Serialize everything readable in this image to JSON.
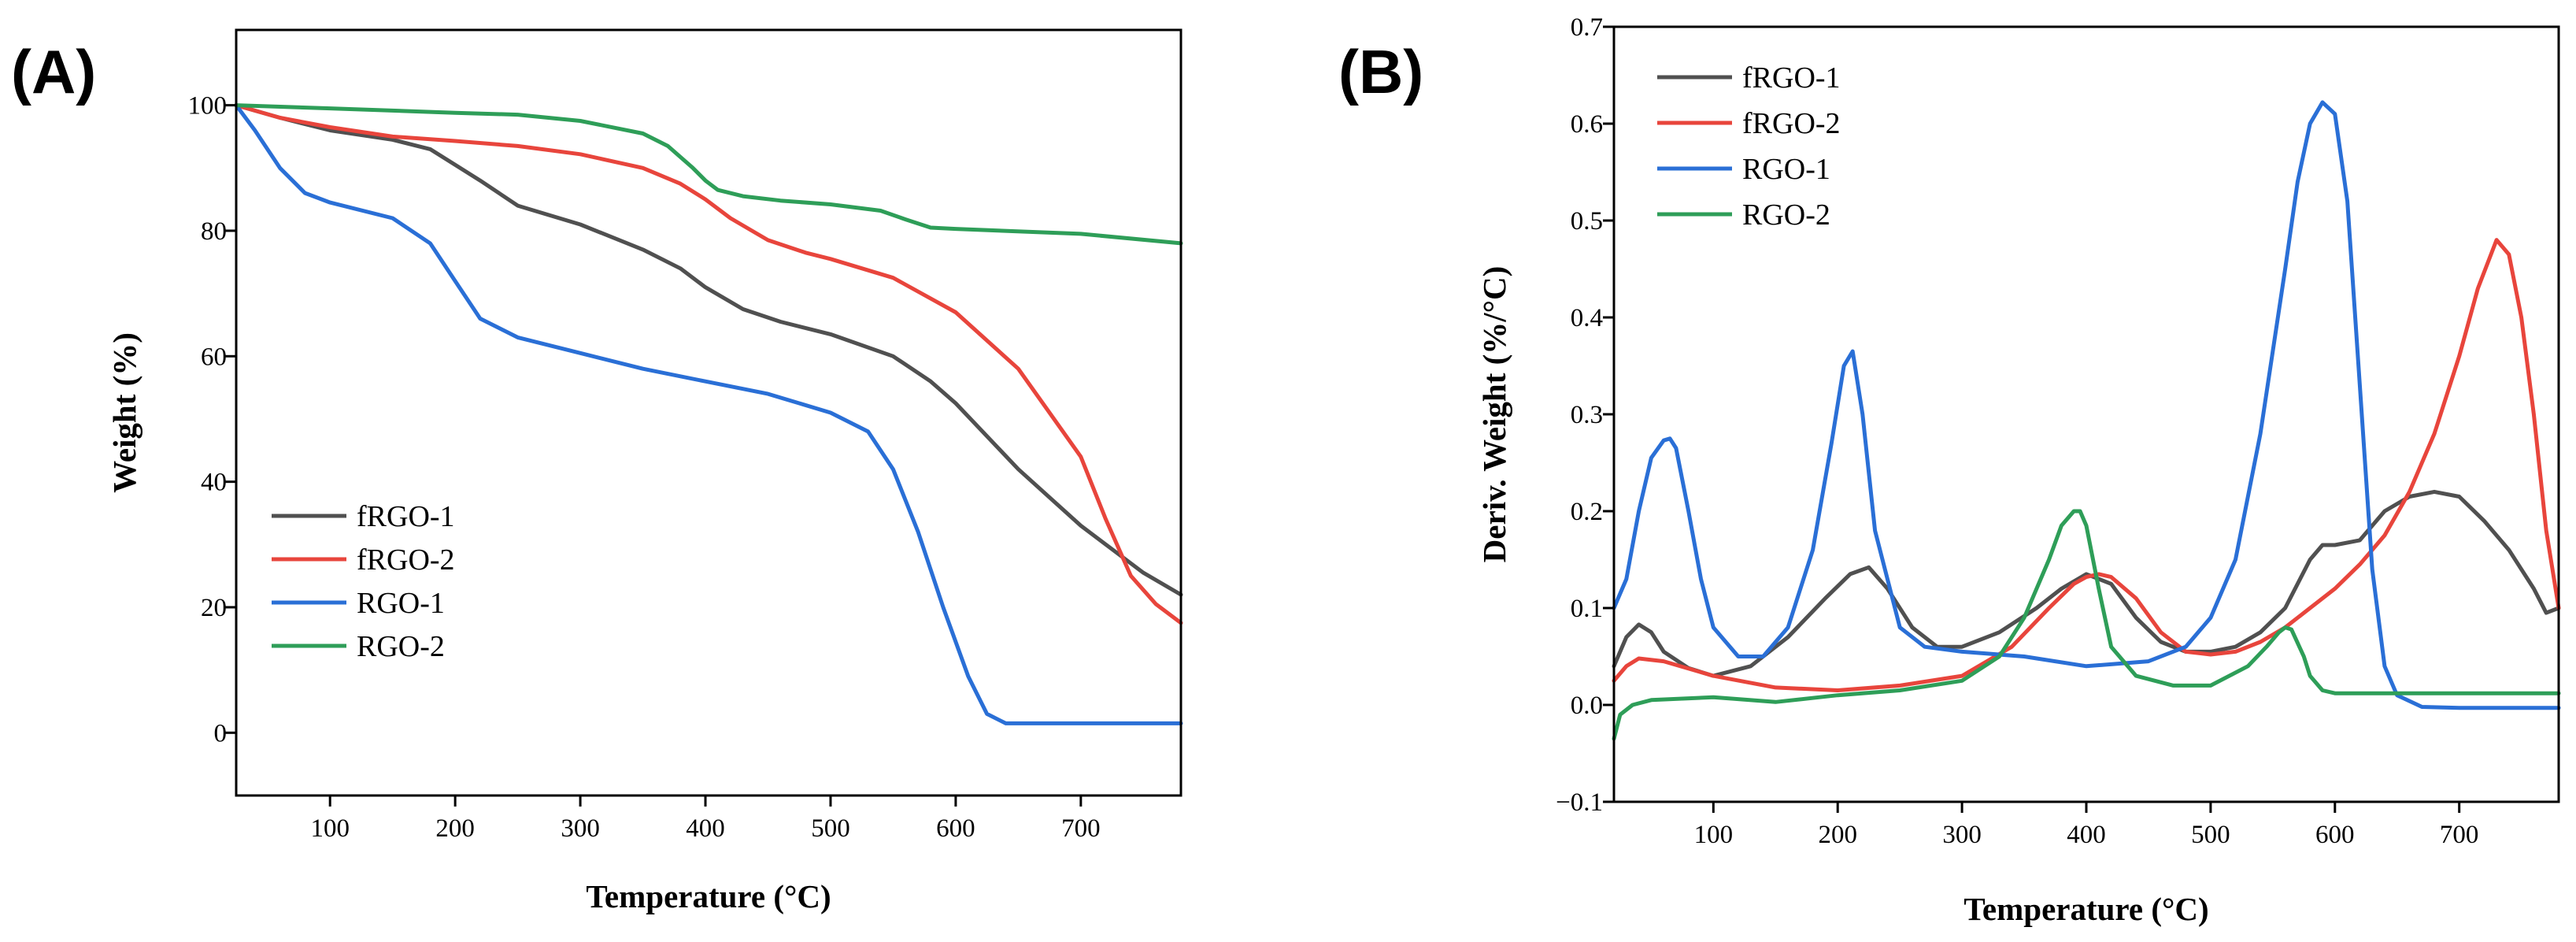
{
  "chart_data": [
    {
      "type": "line",
      "panel_label": "(A)",
      "title": "",
      "xlabel": "Temperature (°C)",
      "ylabel": "Weight (%)",
      "xlim": [
        25,
        780
      ],
      "ylim": [
        -10,
        112
      ],
      "xticks": [
        100,
        200,
        300,
        400,
        500,
        600,
        700
      ],
      "yticks": [
        0,
        20,
        40,
        60,
        80,
        100
      ],
      "legend_position": "bottom-left",
      "series": [
        {
          "name": "fRGO-1",
          "color": "#505050",
          "x": [
            25,
            60,
            100,
            150,
            180,
            200,
            220,
            250,
            300,
            350,
            380,
            400,
            430,
            460,
            500,
            550,
            580,
            600,
            650,
            700,
            750,
            780
          ],
          "y": [
            100,
            98,
            96,
            94.5,
            93,
            90.5,
            88,
            84,
            81,
            77,
            74,
            71,
            67.5,
            65.5,
            63.5,
            60,
            56,
            52.5,
            42,
            33,
            25.5,
            22
          ]
        },
        {
          "name": "fRGO-2",
          "color": "#e8453c",
          "x": [
            25,
            60,
            100,
            150,
            200,
            250,
            300,
            350,
            380,
            400,
            420,
            450,
            480,
            500,
            550,
            600,
            650,
            700,
            720,
            740,
            760,
            780
          ],
          "y": [
            100,
            98,
            96.5,
            95,
            94.3,
            93.5,
            92.2,
            90,
            87.5,
            85,
            82,
            78.5,
            76.5,
            75.5,
            72.5,
            67,
            58,
            44,
            34,
            25,
            20.5,
            17.5
          ]
        },
        {
          "name": "RGO-1",
          "color": "#2a6fd6",
          "x": [
            25,
            40,
            60,
            80,
            100,
            150,
            180,
            200,
            220,
            250,
            300,
            350,
            400,
            450,
            500,
            530,
            550,
            570,
            590,
            610,
            625,
            640,
            660,
            700,
            780
          ],
          "y": [
            100,
            96,
            90,
            86,
            84.5,
            82,
            78,
            72,
            66,
            63,
            60.5,
            58,
            56,
            54,
            51,
            48,
            42,
            32,
            20,
            9,
            3,
            1.5,
            1.5,
            1.5,
            1.5
          ]
        },
        {
          "name": "RGO-2",
          "color": "#2e9e58",
          "x": [
            25,
            100,
            200,
            250,
            300,
            350,
            370,
            390,
            400,
            410,
            430,
            460,
            500,
            540,
            560,
            580,
            600,
            700,
            780
          ],
          "y": [
            100,
            99.5,
            98.8,
            98.5,
            97.5,
            95.5,
            93.5,
            90,
            88,
            86.5,
            85.5,
            84.8,
            84.2,
            83.2,
            81.8,
            80.5,
            80.3,
            79.5,
            78
          ]
        }
      ]
    },
    {
      "type": "line",
      "panel_label": "(B)",
      "title": "",
      "xlabel": "Temperature (°C)",
      "ylabel": "Deriv. Weight (%/°C)",
      "xlim": [
        20,
        780
      ],
      "ylim": [
        -0.1,
        0.7
      ],
      "xticks": [
        100,
        200,
        300,
        400,
        500,
        600,
        700
      ],
      "yticks": [
        -0.1,
        0.0,
        0.1,
        0.2,
        0.3,
        0.4,
        0.5,
        0.6,
        0.7
      ],
      "ytick_labels": [
        "−0.1",
        "0.0",
        "0.1",
        "0.2",
        "0.3",
        "0.4",
        "0.5",
        "0.6",
        "0.7"
      ],
      "legend_position": "top-left",
      "series": [
        {
          "name": "fRGO-1",
          "color": "#505050",
          "x": [
            20,
            30,
            40,
            50,
            60,
            80,
            100,
            130,
            160,
            190,
            210,
            225,
            240,
            260,
            280,
            300,
            330,
            360,
            380,
            400,
            420,
            440,
            460,
            480,
            500,
            520,
            540,
            560,
            580,
            590,
            600,
            620,
            640,
            660,
            680,
            700,
            720,
            740,
            760,
            770,
            780
          ],
          "y": [
            0.04,
            0.07,
            0.083,
            0.075,
            0.055,
            0.038,
            0.03,
            0.04,
            0.07,
            0.11,
            0.135,
            0.142,
            0.12,
            0.08,
            0.06,
            0.06,
            0.075,
            0.1,
            0.12,
            0.135,
            0.125,
            0.09,
            0.065,
            0.055,
            0.055,
            0.06,
            0.075,
            0.1,
            0.15,
            0.165,
            0.165,
            0.17,
            0.2,
            0.215,
            0.22,
            0.215,
            0.19,
            0.16,
            0.12,
            0.095,
            0.1
          ]
        },
        {
          "name": "fRGO-2",
          "color": "#e8453c",
          "x": [
            20,
            30,
            40,
            60,
            100,
            150,
            200,
            250,
            300,
            340,
            370,
            390,
            400,
            410,
            420,
            440,
            460,
            480,
            500,
            520,
            540,
            560,
            580,
            600,
            620,
            640,
            660,
            680,
            700,
            715,
            730,
            740,
            750,
            760,
            770,
            780
          ],
          "y": [
            0.025,
            0.04,
            0.048,
            0.045,
            0.03,
            0.018,
            0.015,
            0.02,
            0.03,
            0.06,
            0.1,
            0.125,
            0.132,
            0.135,
            0.132,
            0.11,
            0.075,
            0.055,
            0.052,
            0.055,
            0.065,
            0.08,
            0.1,
            0.12,
            0.145,
            0.175,
            0.22,
            0.28,
            0.36,
            0.43,
            0.48,
            0.465,
            0.4,
            0.3,
            0.18,
            0.1
          ]
        },
        {
          "name": "RGO-1",
          "color": "#2a6fd6",
          "x": [
            20,
            30,
            40,
            50,
            60,
            65,
            70,
            80,
            90,
            100,
            120,
            140,
            160,
            180,
            195,
            205,
            212,
            220,
            230,
            250,
            270,
            300,
            350,
            400,
            450,
            480,
            500,
            520,
            540,
            560,
            570,
            580,
            590,
            600,
            610,
            620,
            630,
            640,
            650,
            670,
            700,
            780
          ],
          "y": [
            0.1,
            0.13,
            0.2,
            0.255,
            0.273,
            0.275,
            0.265,
            0.2,
            0.13,
            0.08,
            0.05,
            0.05,
            0.08,
            0.16,
            0.27,
            0.35,
            0.365,
            0.3,
            0.18,
            0.08,
            0.06,
            0.055,
            0.05,
            0.04,
            0.045,
            0.06,
            0.09,
            0.15,
            0.28,
            0.45,
            0.54,
            0.6,
            0.622,
            0.61,
            0.52,
            0.33,
            0.14,
            0.04,
            0.01,
            -0.002,
            -0.003,
            -0.003
          ]
        },
        {
          "name": "RGO-2",
          "color": "#2e9e58",
          "x": [
            20,
            25,
            35,
            50,
            100,
            150,
            200,
            250,
            300,
            330,
            350,
            370,
            380,
            390,
            395,
            400,
            410,
            420,
            440,
            470,
            500,
            530,
            545,
            555,
            560,
            565,
            575,
            580,
            590,
            600,
            700,
            780
          ],
          "y": [
            -0.035,
            -0.01,
            0.0,
            0.005,
            0.008,
            0.003,
            0.01,
            0.015,
            0.025,
            0.05,
            0.09,
            0.15,
            0.185,
            0.2,
            0.2,
            0.185,
            0.12,
            0.06,
            0.03,
            0.02,
            0.02,
            0.04,
            0.06,
            0.075,
            0.08,
            0.078,
            0.05,
            0.03,
            0.015,
            0.012,
            0.012,
            0.012
          ]
        }
      ]
    }
  ]
}
